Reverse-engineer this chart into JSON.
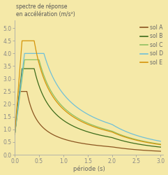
{
  "title": "spectre de réponse\nen accélération (m/s²)",
  "xlabel": "période (s)",
  "background_color": "#f5e9a8",
  "xlim": [
    0,
    3.05
  ],
  "ylim": [
    0,
    5.3
  ],
  "yticks": [
    0,
    0.5,
    1,
    1.5,
    2,
    2.5,
    3,
    3.5,
    4,
    4.5,
    5
  ],
  "xticks": [
    0,
    0.5,
    1,
    1.5,
    2,
    2.5,
    3
  ],
  "sols": [
    {
      "name": "sol A",
      "color": "#8b5520",
      "S_a_flat": 2.5,
      "T_B": 0.1,
      "T_C": 0.25,
      "T_D": 2.0,
      "ag": 0.8
    },
    {
      "name": "sol B",
      "color": "#3d6b1a",
      "S_a_flat": 3.4,
      "T_B": 0.15,
      "T_C": 0.4,
      "T_D": 2.0,
      "ag": 0.8
    },
    {
      "name": "sol C",
      "color": "#90c060",
      "S_a_flat": 3.75,
      "T_B": 0.2,
      "T_C": 0.5,
      "T_D": 2.0,
      "ag": 0.8
    },
    {
      "name": "sol D",
      "color": "#70c0d8",
      "S_a_flat": 4.0,
      "T_B": 0.2,
      "T_C": 0.6,
      "T_D": 2.0,
      "ag": 0.8
    },
    {
      "name": "sol E",
      "color": "#d4940a",
      "S_a_flat": 4.5,
      "T_B": 0.15,
      "T_C": 0.4,
      "T_D": 2.0,
      "ag": 0.8
    }
  ],
  "title_fontsize": 5.5,
  "tick_fontsize": 5.5,
  "xlabel_fontsize": 6.0,
  "legend_fontsize": 5.5
}
